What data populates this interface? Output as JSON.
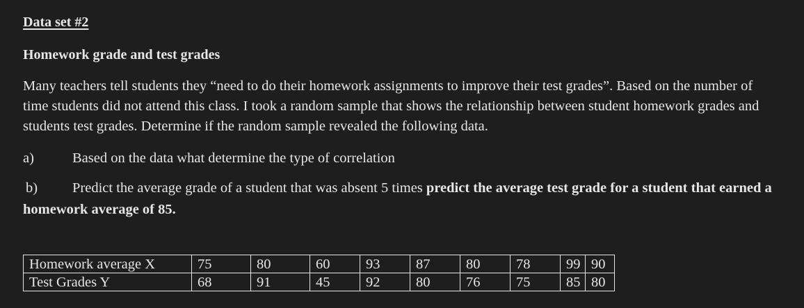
{
  "heading": "Data set #2",
  "subheading": "Homework grade and test grades",
  "paragraph": "Many teachers tell students they “need to do their homework assignments to improve their test grades”. Based on the number of time students did not attend this class. I took a random sample that shows the relationship between student homework grades and students test grades. Determine if the random sample revealed the following data.",
  "question_a": {
    "marker": "a)",
    "text": "Based on the data what determine the type of correlation"
  },
  "question_b": {
    "marker": "b)",
    "text_plain": "Predict the average grade of a student that was absent 5 times ",
    "text_bold": "predict the average test grade for a student that earned a homework average of 85."
  },
  "table": {
    "rows": [
      {
        "label": "Homework average X",
        "values": [
          "75",
          "80",
          "60",
          "93",
          "87",
          "80",
          "78",
          "99",
          "90"
        ]
      },
      {
        "label": "Test Grades Y",
        "values": [
          "68",
          "91",
          "45",
          "92",
          "80",
          "76",
          "75",
          "85",
          "80"
        ]
      }
    ]
  }
}
